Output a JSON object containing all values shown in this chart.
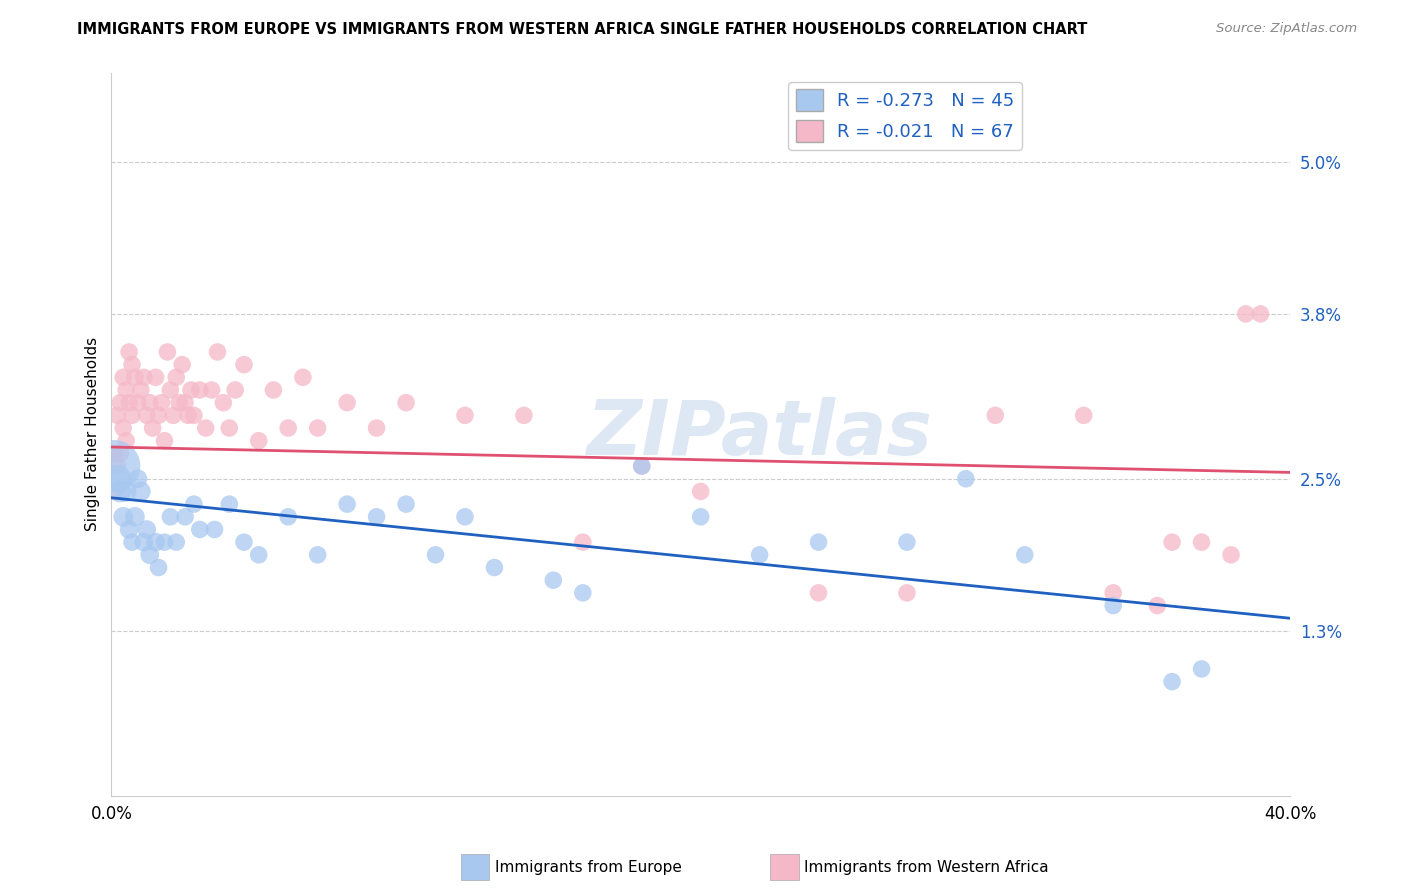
{
  "title": "IMMIGRANTS FROM EUROPE VS IMMIGRANTS FROM WESTERN AFRICA SINGLE FATHER HOUSEHOLDS CORRELATION CHART",
  "source": "Source: ZipAtlas.com",
  "ylabel": "Single Father Households",
  "xlim": [
    0.0,
    0.4
  ],
  "ylim": [
    0.0,
    0.057
  ],
  "ytick_values": [
    0.013,
    0.025,
    0.038,
    0.05
  ],
  "ytick_labels": [
    "1.3%",
    "2.5%",
    "3.8%",
    "5.0%"
  ],
  "xtick_values": [
    0.0,
    0.4
  ],
  "xtick_labels": [
    "0.0%",
    "40.0%"
  ],
  "eu_color": "#a8c8f0",
  "wa_color": "#f5b8c8",
  "eu_line_color": "#2060c0",
  "wa_line_color": "#e05070",
  "legend_eu_label": "R = -0.273   N = 45",
  "legend_wa_label": "R = -0.021   N = 67",
  "bottom_label_eu": "Immigrants from Europe",
  "bottom_label_wa": "Immigrants from Western Africa",
  "watermark": "ZIPatlas",
  "blue_line_y0": 0.0235,
  "blue_line_y1": 0.014,
  "pink_line_y0": 0.0275,
  "pink_line_y1": 0.0255,
  "blue_x": [
    0.001,
    0.002,
    0.003,
    0.004,
    0.005,
    0.006,
    0.007,
    0.008,
    0.009,
    0.01,
    0.011,
    0.012,
    0.013,
    0.015,
    0.016,
    0.018,
    0.02,
    0.022,
    0.025,
    0.028,
    0.03,
    0.035,
    0.04,
    0.045,
    0.05,
    0.06,
    0.07,
    0.08,
    0.09,
    0.1,
    0.11,
    0.12,
    0.13,
    0.15,
    0.16,
    0.18,
    0.2,
    0.22,
    0.24,
    0.27,
    0.29,
    0.31,
    0.34,
    0.36,
    0.37
  ],
  "blue_y": [
    0.026,
    0.025,
    0.024,
    0.022,
    0.024,
    0.021,
    0.02,
    0.022,
    0.025,
    0.024,
    0.02,
    0.021,
    0.019,
    0.02,
    0.018,
    0.02,
    0.022,
    0.02,
    0.022,
    0.023,
    0.021,
    0.021,
    0.023,
    0.02,
    0.019,
    0.022,
    0.019,
    0.023,
    0.022,
    0.023,
    0.019,
    0.022,
    0.018,
    0.017,
    0.016,
    0.026,
    0.022,
    0.019,
    0.02,
    0.02,
    0.025,
    0.019,
    0.015,
    0.009,
    0.01
  ],
  "blue_sizes": [
    1400,
    400,
    250,
    200,
    220,
    180,
    160,
    200,
    180,
    200,
    180,
    180,
    180,
    180,
    160,
    160,
    160,
    160,
    160,
    160,
    160,
    160,
    160,
    160,
    160,
    160,
    160,
    160,
    160,
    160,
    160,
    160,
    160,
    160,
    160,
    160,
    160,
    160,
    160,
    160,
    160,
    160,
    160,
    160,
    160
  ],
  "pink_x": [
    0.001,
    0.001,
    0.002,
    0.002,
    0.003,
    0.003,
    0.004,
    0.004,
    0.005,
    0.005,
    0.006,
    0.006,
    0.007,
    0.007,
    0.008,
    0.009,
    0.01,
    0.011,
    0.012,
    0.013,
    0.014,
    0.015,
    0.016,
    0.017,
    0.018,
    0.019,
    0.02,
    0.021,
    0.022,
    0.023,
    0.024,
    0.025,
    0.026,
    0.027,
    0.028,
    0.03,
    0.032,
    0.034,
    0.036,
    0.038,
    0.04,
    0.042,
    0.045,
    0.05,
    0.055,
    0.06,
    0.065,
    0.07,
    0.08,
    0.09,
    0.1,
    0.12,
    0.14,
    0.16,
    0.18,
    0.2,
    0.24,
    0.27,
    0.3,
    0.33,
    0.34,
    0.355,
    0.36,
    0.37,
    0.38,
    0.385,
    0.39
  ],
  "pink_y": [
    0.027,
    0.024,
    0.03,
    0.026,
    0.031,
    0.027,
    0.033,
    0.029,
    0.032,
    0.028,
    0.035,
    0.031,
    0.034,
    0.03,
    0.033,
    0.031,
    0.032,
    0.033,
    0.03,
    0.031,
    0.029,
    0.033,
    0.03,
    0.031,
    0.028,
    0.035,
    0.032,
    0.03,
    0.033,
    0.031,
    0.034,
    0.031,
    0.03,
    0.032,
    0.03,
    0.032,
    0.029,
    0.032,
    0.035,
    0.031,
    0.029,
    0.032,
    0.034,
    0.028,
    0.032,
    0.029,
    0.033,
    0.029,
    0.031,
    0.029,
    0.031,
    0.03,
    0.03,
    0.02,
    0.026,
    0.024,
    0.016,
    0.016,
    0.03,
    0.03,
    0.016,
    0.015,
    0.02,
    0.02,
    0.019,
    0.038,
    0.038
  ],
  "pink_sizes": [
    160,
    160,
    160,
    160,
    160,
    160,
    160,
    160,
    160,
    160,
    160,
    160,
    160,
    160,
    160,
    160,
    160,
    160,
    160,
    160,
    160,
    160,
    160,
    160,
    160,
    160,
    160,
    160,
    160,
    160,
    160,
    160,
    160,
    160,
    160,
    160,
    160,
    160,
    160,
    160,
    160,
    160,
    160,
    160,
    160,
    160,
    160,
    160,
    160,
    160,
    160,
    160,
    160,
    160,
    160,
    160,
    160,
    160,
    160,
    160,
    160,
    160,
    160,
    160,
    160,
    160,
    160
  ]
}
